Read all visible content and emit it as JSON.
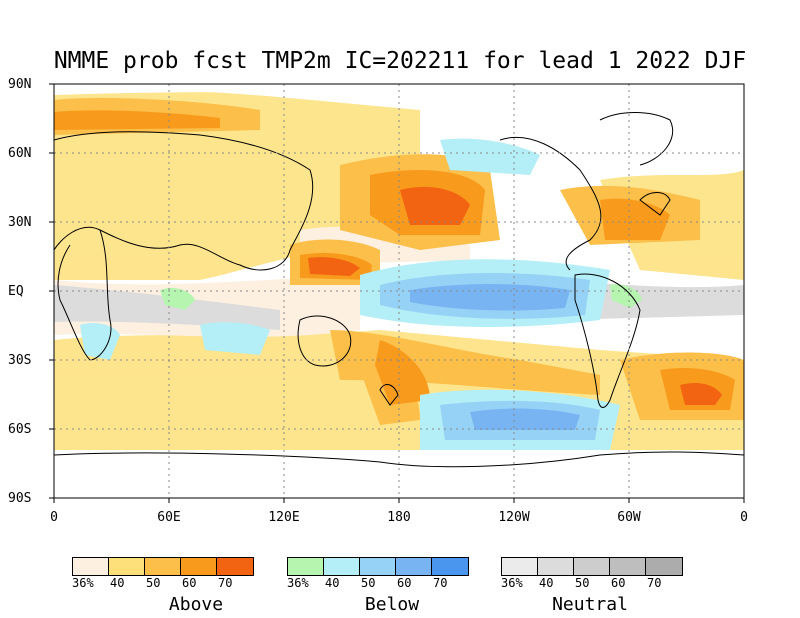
{
  "title": "NMME prob fcst TMP2m IC=202211 for lead 1 2022 DJF",
  "lat_labels": [
    "90N",
    "60N",
    "30N",
    "EQ",
    "30S",
    "60S",
    "90S"
  ],
  "lon_labels": [
    "0",
    "60E",
    "120E",
    "180",
    "120W",
    "60W",
    "0"
  ],
  "legends": [
    {
      "name": "Above",
      "ticks": [
        "36%",
        "40",
        "50",
        "60",
        "70"
      ],
      "colors": [
        "#fdf0e0",
        "#fde07a",
        "#fbbf4a",
        "#f89a1c",
        "#f26411"
      ]
    },
    {
      "name": "Below",
      "ticks": [
        "36%",
        "40",
        "50",
        "60",
        "70"
      ],
      "colors": [
        "#b6f5b0",
        "#b4eef7",
        "#96d2f6",
        "#78b4f2",
        "#4a96ee"
      ]
    },
    {
      "name": "Neutral",
      "ticks": [
        "36%",
        "40",
        "50",
        "60",
        "70"
      ],
      "colors": [
        "#ebebeb",
        "#dcdcdc",
        "#cdcdcd",
        "#bebebe",
        "#acacac"
      ]
    }
  ]
}
